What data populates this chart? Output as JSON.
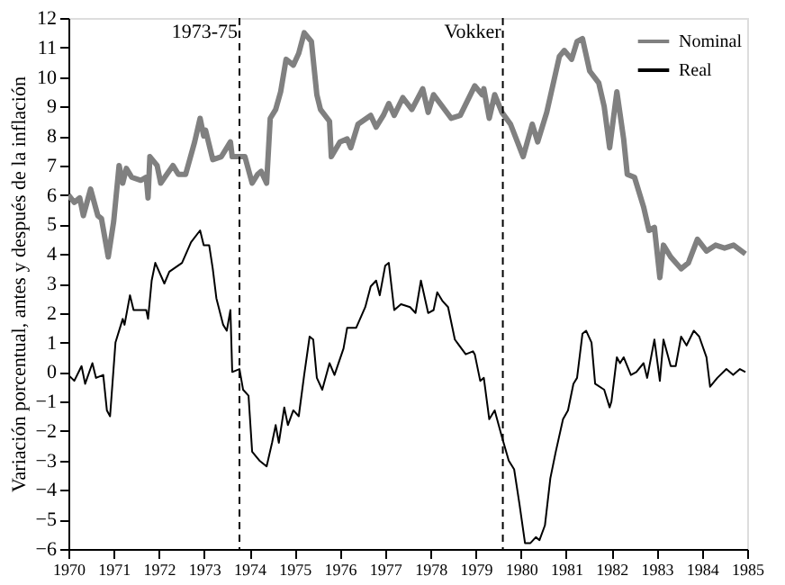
{
  "chart_data": {
    "type": "line",
    "ylabel": "Variación porcentual, antes y después de la inflación",
    "xlim": [
      1970,
      1985
    ],
    "xticks": [
      1970,
      1971,
      1972,
      1973,
      1974,
      1975,
      1976,
      1977,
      1978,
      1979,
      1980,
      1981,
      1982,
      1983,
      1984,
      1985
    ],
    "ylim": [
      -6,
      12
    ],
    "yticks": [
      -6,
      -5,
      -4,
      -3,
      -2,
      -1,
      0,
      1,
      2,
      3,
      4,
      5,
      6,
      7,
      8,
      9,
      10,
      11,
      12
    ],
    "grid": false,
    "legend": "top right",
    "line_style": "solid",
    "annotations": [
      "1973-75"
    ],
    "ref_lines": [
      {
        "axis": "x",
        "value": 1973.78,
        "color": "#000000",
        "line_style": "dashed"
      },
      {
        "axis": "x",
        "value": 1979.6,
        "label": "Vokker",
        "color": "#000000",
        "line_style": "dashed"
      }
    ],
    "series": [
      {
        "name": "Nominal",
        "color": "#808080",
        "x": [
          1970.0,
          1970.13,
          1970.25,
          1970.33,
          1970.49,
          1970.65,
          1970.73,
          1970.88,
          1971.0,
          1971.12,
          1971.2,
          1971.28,
          1971.4,
          1971.6,
          1971.72,
          1971.76,
          1971.8,
          1971.96,
          1972.04,
          1972.31,
          1972.43,
          1972.59,
          1972.79,
          1972.91,
          1972.99,
          1973.03,
          1973.19,
          1973.38,
          1973.58,
          1973.62,
          1973.78,
          1973.9,
          1974.06,
          1974.18,
          1974.26,
          1974.38,
          1974.46,
          1974.58,
          1974.69,
          1974.81,
          1974.97,
          1975.09,
          1975.21,
          1975.37,
          1975.49,
          1975.57,
          1975.77,
          1975.81,
          1976.0,
          1976.16,
          1976.24,
          1976.4,
          1976.68,
          1976.8,
          1976.96,
          1977.08,
          1977.2,
          1977.39,
          1977.59,
          1977.83,
          1977.95,
          1978.07,
          1978.46,
          1978.66,
          1978.98,
          1979.14,
          1979.18,
          1979.3,
          1979.42,
          1979.58,
          1979.77,
          1980.05,
          1980.25,
          1980.37,
          1980.57,
          1980.85,
          1980.96,
          1981.12,
          1981.24,
          1981.36,
          1981.52,
          1981.72,
          1981.84,
          1981.96,
          1982.12,
          1982.27,
          1982.35,
          1982.51,
          1982.71,
          1982.83,
          1982.95,
          1983.07,
          1983.15,
          1983.31,
          1983.54,
          1983.7,
          1983.9,
          1984.1,
          1984.3,
          1984.5,
          1984.7,
          1984.96
        ],
        "values": [
          6.0,
          5.75,
          5.9,
          5.3,
          6.2,
          5.3,
          5.2,
          3.9,
          5.1,
          7.0,
          6.4,
          6.9,
          6.6,
          6.5,
          6.6,
          5.9,
          7.3,
          7.0,
          6.4,
          7.0,
          6.7,
          6.7,
          7.8,
          8.6,
          8.0,
          8.2,
          7.2,
          7.3,
          7.8,
          7.3,
          7.3,
          7.3,
          6.4,
          6.7,
          6.8,
          6.4,
          8.6,
          8.9,
          9.5,
          10.6,
          10.4,
          10.8,
          11.5,
          11.2,
          9.4,
          8.9,
          8.5,
          7.3,
          7.8,
          7.9,
          7.6,
          8.4,
          8.7,
          8.3,
          8.7,
          9.1,
          8.7,
          9.3,
          8.9,
          9.6,
          8.8,
          9.4,
          8.6,
          8.7,
          9.7,
          9.4,
          9.6,
          8.6,
          9.4,
          8.8,
          8.4,
          7.3,
          8.4,
          7.8,
          8.8,
          10.7,
          10.9,
          10.6,
          11.2,
          11.3,
          10.2,
          9.8,
          9.0,
          7.6,
          9.5,
          7.9,
          6.7,
          6.6,
          5.6,
          4.8,
          4.9,
          3.2,
          4.3,
          3.9,
          3.5,
          3.7,
          4.5,
          4.1,
          4.3,
          4.2,
          4.3,
          4.0
        ]
      },
      {
        "name": "Real",
        "color": "#000000",
        "x": [
          1970.0,
          1970.13,
          1970.29,
          1970.37,
          1970.53,
          1970.61,
          1970.77,
          1970.85,
          1970.92,
          1971.04,
          1971.2,
          1971.24,
          1971.36,
          1971.44,
          1971.72,
          1971.76,
          1971.84,
          1971.92,
          1972.12,
          1972.23,
          1972.51,
          1972.71,
          1972.91,
          1972.99,
          1973.11,
          1973.19,
          1973.27,
          1973.42,
          1973.5,
          1973.58,
          1973.62,
          1973.78,
          1973.86,
          1973.98,
          1974.06,
          1974.22,
          1974.38,
          1974.5,
          1974.58,
          1974.65,
          1974.77,
          1974.85,
          1974.97,
          1975.09,
          1975.21,
          1975.33,
          1975.41,
          1975.49,
          1975.61,
          1975.77,
          1975.88,
          1976.08,
          1976.16,
          1976.36,
          1976.56,
          1976.68,
          1976.8,
          1976.88,
          1977.0,
          1977.08,
          1977.2,
          1977.35,
          1977.55,
          1977.67,
          1977.79,
          1977.95,
          1978.07,
          1978.15,
          1978.27,
          1978.39,
          1978.54,
          1978.78,
          1978.94,
          1978.98,
          1979.1,
          1979.18,
          1979.3,
          1979.42,
          1979.58,
          1979.73,
          1979.85,
          1979.97,
          1980.09,
          1980.21,
          1980.33,
          1980.41,
          1980.53,
          1980.65,
          1980.77,
          1980.93,
          1981.04,
          1981.16,
          1981.24,
          1981.36,
          1981.44,
          1981.56,
          1981.64,
          1981.84,
          1981.96,
          1982.0,
          1982.12,
          1982.19,
          1982.27,
          1982.43,
          1982.55,
          1982.71,
          1982.79,
          1982.95,
          1983.07,
          1983.15,
          1983.31,
          1983.42,
          1983.54,
          1983.66,
          1983.82,
          1983.94,
          1984.1,
          1984.18,
          1984.34,
          1984.54,
          1984.69,
          1984.84,
          1984.96
        ],
        "values": [
          -0.1,
          -0.3,
          0.2,
          -0.4,
          0.3,
          -0.2,
          -0.1,
          -1.3,
          -1.5,
          1.0,
          1.8,
          1.6,
          2.6,
          2.1,
          2.1,
          1.8,
          3.1,
          3.7,
          3.0,
          3.4,
          3.7,
          4.4,
          4.8,
          4.3,
          4.3,
          3.5,
          2.5,
          1.6,
          1.4,
          2.1,
          0.0,
          0.1,
          -0.6,
          -0.8,
          -2.7,
          -3.0,
          -3.2,
          -2.4,
          -1.8,
          -2.4,
          -1.2,
          -1.8,
          -1.3,
          -1.5,
          -0.1,
          1.2,
          1.1,
          -0.2,
          -0.6,
          0.3,
          -0.1,
          0.8,
          1.5,
          1.5,
          2.2,
          2.9,
          3.1,
          2.6,
          3.6,
          3.7,
          2.1,
          2.3,
          2.2,
          2.0,
          3.1,
          2.0,
          2.1,
          2.7,
          2.4,
          2.2,
          1.1,
          0.6,
          0.7,
          0.6,
          -0.3,
          -0.2,
          -1.6,
          -1.3,
          -2.2,
          -3.0,
          -3.3,
          -4.5,
          -5.8,
          -5.8,
          -5.6,
          -5.7,
          -5.2,
          -3.6,
          -2.7,
          -1.6,
          -1.3,
          -0.4,
          -0.2,
          1.3,
          1.4,
          1.0,
          -0.4,
          -0.6,
          -1.2,
          -1.0,
          0.5,
          0.3,
          0.5,
          -0.1,
          0.0,
          0.3,
          -0.2,
          1.1,
          -0.3,
          1.1,
          0.2,
          0.2,
          1.2,
          0.9,
          1.4,
          1.2,
          0.5,
          -0.5,
          -0.2,
          0.1,
          -0.1,
          0.1,
          0.0
        ]
      }
    ]
  }
}
